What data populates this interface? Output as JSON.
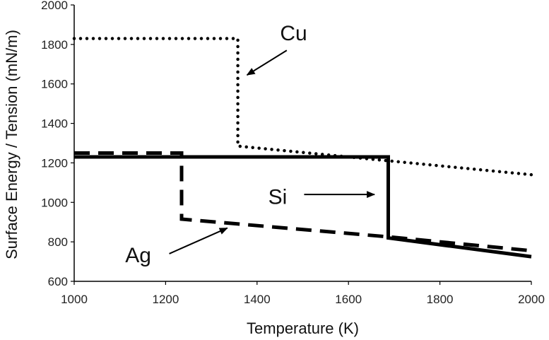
{
  "chart_data": {
    "type": "line",
    "title": "",
    "xlabel": "Temperature (K)",
    "ylabel": "Surface Energy / Tension (mN/m)",
    "xlim": [
      1000,
      2000
    ],
    "ylim": [
      600,
      2000
    ],
    "xticks": [
      1000,
      1200,
      1400,
      1600,
      1800,
      2000
    ],
    "yticks": [
      600,
      800,
      1000,
      1200,
      1400,
      1600,
      1800,
      2000
    ],
    "grid": false,
    "series": [
      {
        "name": "Cu",
        "style": "dotted",
        "width": "medium",
        "points": [
          [
            1000,
            1830
          ],
          [
            1358,
            1830
          ],
          [
            1358,
            1285
          ],
          [
            2000,
            1140
          ]
        ]
      },
      {
        "name": "Ag",
        "style": "dashed",
        "width": "thick",
        "points": [
          [
            1000,
            1250
          ],
          [
            1235,
            1250
          ],
          [
            1235,
            915
          ],
          [
            1690,
            825
          ],
          [
            2000,
            755
          ]
        ]
      },
      {
        "name": "Si",
        "style": "solid",
        "width": "thick",
        "points": [
          [
            1000,
            1230
          ],
          [
            1687,
            1230
          ],
          [
            1687,
            820
          ],
          [
            2000,
            725
          ]
        ]
      }
    ],
    "annotations": [
      {
        "text": "Cu",
        "label_at": [
          1480,
          1850
        ],
        "arrow_from": [
          1465,
          1770
        ],
        "arrow_to": [
          1378,
          1645
        ]
      },
      {
        "text": "Si",
        "label_at": [
          1445,
          1020
        ],
        "arrow_from": [
          1503,
          1040
        ],
        "arrow_to": [
          1657,
          1040
        ]
      },
      {
        "text": "Ag",
        "label_at": [
          1140,
          725
        ],
        "arrow_from": [
          1208,
          740
        ],
        "arrow_to": [
          1335,
          870
        ]
      }
    ]
  }
}
